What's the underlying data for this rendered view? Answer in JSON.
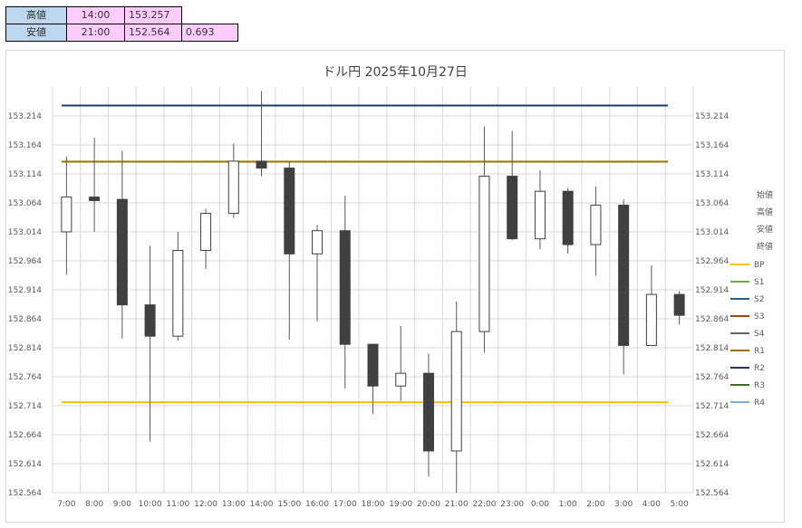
{
  "summary": {
    "high_label": "高値",
    "high_time": "14:00",
    "high_price": "153.257",
    "low_label": "安値",
    "low_time": "21:00",
    "low_price": "152.564",
    "range": "0.693"
  },
  "chart_data": {
    "type": "candlestick",
    "title": "ドル円  2025年10月27日",
    "ylim": [
      152.564,
      153.264
    ],
    "y_ticks": [
      "153.214",
      "153.164",
      "153.114",
      "153.064",
      "153.014",
      "152.964",
      "152.914",
      "152.864",
      "152.814",
      "152.764",
      "152.714",
      "152.664",
      "152.614",
      "152.564"
    ],
    "categories": [
      "7:00",
      "8:00",
      "9:00",
      "10:00",
      "11:00",
      "12:00",
      "13:00",
      "14:00",
      "15:00",
      "16:00",
      "17:00",
      "18:00",
      "19:00",
      "20:00",
      "21:00",
      "22:00",
      "23:00",
      "0:00",
      "1:00",
      "2:00",
      "3:00",
      "4:00",
      "5:00"
    ],
    "candles": [
      {
        "o": 153.014,
        "h": 153.144,
        "l": 152.94,
        "c": 153.074
      },
      {
        "o": 153.074,
        "h": 153.176,
        "l": 153.014,
        "c": 153.068
      },
      {
        "o": 153.07,
        "h": 153.154,
        "l": 152.83,
        "c": 152.888
      },
      {
        "o": 152.888,
        "h": 152.99,
        "l": 152.652,
        "c": 152.834
      },
      {
        "o": 152.834,
        "h": 153.014,
        "l": 152.826,
        "c": 152.982
      },
      {
        "o": 152.982,
        "h": 153.054,
        "l": 152.95,
        "c": 153.046
      },
      {
        "o": 153.046,
        "h": 153.166,
        "l": 153.038,
        "c": 153.136
      },
      {
        "o": 153.136,
        "h": 153.257,
        "l": 153.11,
        "c": 153.124
      },
      {
        "o": 153.124,
        "h": 153.136,
        "l": 152.828,
        "c": 152.976
      },
      {
        "o": 152.976,
        "h": 153.026,
        "l": 152.86,
        "c": 153.016
      },
      {
        "o": 153.016,
        "h": 153.076,
        "l": 152.744,
        "c": 152.82
      },
      {
        "o": 152.82,
        "h": 152.82,
        "l": 152.7,
        "c": 152.748
      },
      {
        "o": 152.748,
        "h": 152.852,
        "l": 152.722,
        "c": 152.77
      },
      {
        "o": 152.77,
        "h": 152.804,
        "l": 152.592,
        "c": 152.636
      },
      {
        "o": 152.636,
        "h": 152.894,
        "l": 152.564,
        "c": 152.842
      },
      {
        "o": 152.842,
        "h": 153.196,
        "l": 152.806,
        "c": 153.11
      },
      {
        "o": 153.11,
        "h": 153.188,
        "l": 153.0,
        "c": 153.002
      },
      {
        "o": 153.002,
        "h": 153.12,
        "l": 152.984,
        "c": 153.084
      },
      {
        "o": 153.084,
        "h": 153.09,
        "l": 152.976,
        "c": 152.992
      },
      {
        "o": 152.992,
        "h": 153.092,
        "l": 152.938,
        "c": 153.06
      },
      {
        "o": 153.06,
        "h": 153.07,
        "l": 152.768,
        "c": 152.818
      },
      {
        "o": 152.818,
        "h": 152.956,
        "l": 152.818,
        "c": 152.906
      },
      {
        "o": 152.906,
        "h": 152.912,
        "l": 152.854,
        "c": 152.87
      }
    ],
    "lines": [
      {
        "name": "BP",
        "value": 152.72,
        "color": "#ffc000"
      },
      {
        "name": "S1",
        "value": null,
        "color": "#70ad47"
      },
      {
        "name": "S2",
        "value": null,
        "color": "#255e91"
      },
      {
        "name": "S3",
        "value": null,
        "color": "#9e480e"
      },
      {
        "name": "S4",
        "value": null,
        "color": "#636363"
      },
      {
        "name": "R1",
        "value": 153.135,
        "color": "#997300"
      },
      {
        "name": "R2",
        "value": 153.232,
        "color": "#203864"
      },
      {
        "name": "R3",
        "value": null,
        "color": "#43682b"
      },
      {
        "name": "R4",
        "value": null,
        "color": "#7cafdd"
      }
    ],
    "legend_ohlc": [
      "始値",
      "高値",
      "安値",
      "終値"
    ],
    "up_color": "#ffffff",
    "down_color": "#404040",
    "grid": true
  }
}
